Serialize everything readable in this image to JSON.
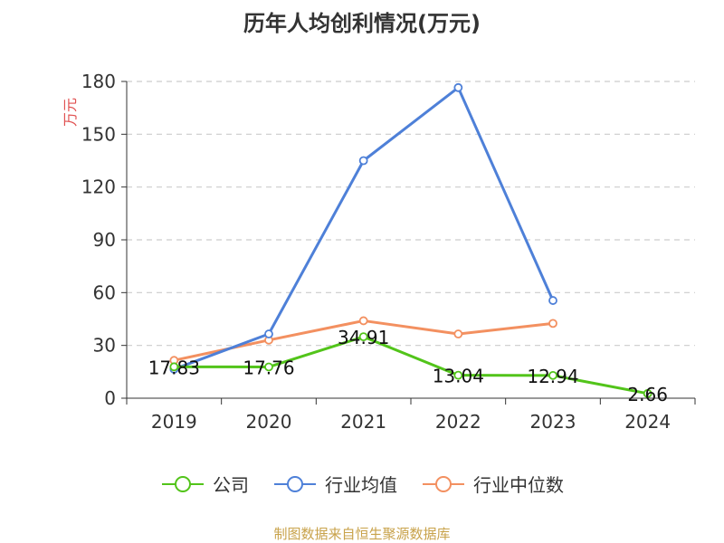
{
  "title": "历年人均创利情况(万元)",
  "source": "制图数据来自恒生聚源数据库",
  "colors": {
    "company": "#52c41a",
    "industry_avg": "#4e80d8",
    "industry_median": "#f39060"
  },
  "chart_data": {
    "type": "line",
    "title": "历年人均创利情况(万元)",
    "ylabel": "万元",
    "xlabel": "",
    "categories": [
      "2019",
      "2020",
      "2021",
      "2022",
      "2023",
      "2024"
    ],
    "ylim": [
      0,
      180
    ],
    "yticks": [
      "0",
      "30",
      "60",
      "90",
      "120",
      "150",
      "180"
    ],
    "grid": true,
    "legend_position": "bottom",
    "series": [
      {
        "name": "公司",
        "values": [
          17.83,
          17.76,
          34.91,
          13.04,
          12.94,
          2.66
        ],
        "labels": [
          "17.83",
          "17.76",
          "34.91",
          "13.04",
          "12.94",
          "2.66"
        ]
      },
      {
        "name": "行业均值",
        "values": [
          16.5,
          36.5,
          135,
          176.5,
          55.5,
          null
        ]
      },
      {
        "name": "行业中位数",
        "values": [
          21.5,
          33,
          44,
          36.5,
          42.5,
          null
        ]
      }
    ]
  }
}
